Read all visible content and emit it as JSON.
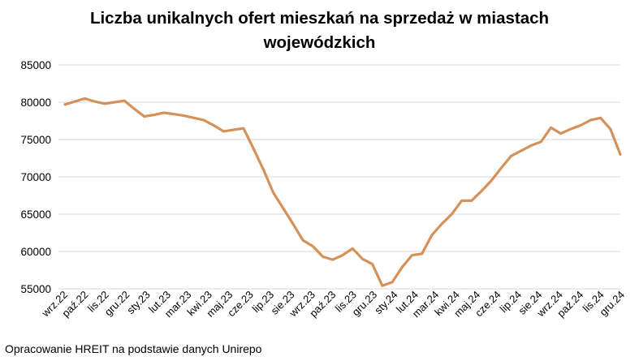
{
  "chart_data": {
    "type": "line",
    "title_line1": "Liczba unikalnych ofert mieszkań na sprzedaż w miastach",
    "title_line2": "wojewódzkich",
    "source": "Opracowanie HREIT na podstawie danych Unirepo",
    "ylim": [
      55000,
      85000
    ],
    "yticks": [
      "85000",
      "80000",
      "75000",
      "70000",
      "65000",
      "60000",
      "55000"
    ],
    "grid": true,
    "xtick_labels": [
      "wrz.22",
      "paź.22",
      "lis.22",
      "gru.22",
      "sty.23",
      "lut.23",
      "mar.23",
      "kwi.23",
      "maj.23",
      "cze.23",
      "lip.23",
      "sie.23",
      "wrz.23",
      "paź.23",
      "lis.23",
      "gru.23",
      "sty.24",
      "lut.24",
      "mar.24",
      "kwi.24",
      "maj.24",
      "cze.24",
      "lip.24",
      "sie.24",
      "wrz.24",
      "paź.24",
      "lis.24",
      "gru.24"
    ],
    "line_color": "#D4915A",
    "values": [
      79700,
      80100,
      80500,
      80100,
      79800,
      80000,
      80200,
      79100,
      78100,
      78300,
      78600,
      78400,
      78200,
      77900,
      77600,
      76900,
      76100,
      76300,
      76500,
      73800,
      71000,
      67900,
      65800,
      63700,
      61500,
      60700,
      59300,
      58900,
      59500,
      60400,
      59000,
      58300,
      55400,
      55900,
      57900,
      59500,
      59700,
      62200,
      63700,
      65000,
      66800,
      66800,
      68100,
      69500,
      71200,
      72800,
      73500,
      74200,
      74700,
      76600,
      75800,
      76400,
      76900,
      77600,
      77900,
      76400,
      73000
    ]
  }
}
